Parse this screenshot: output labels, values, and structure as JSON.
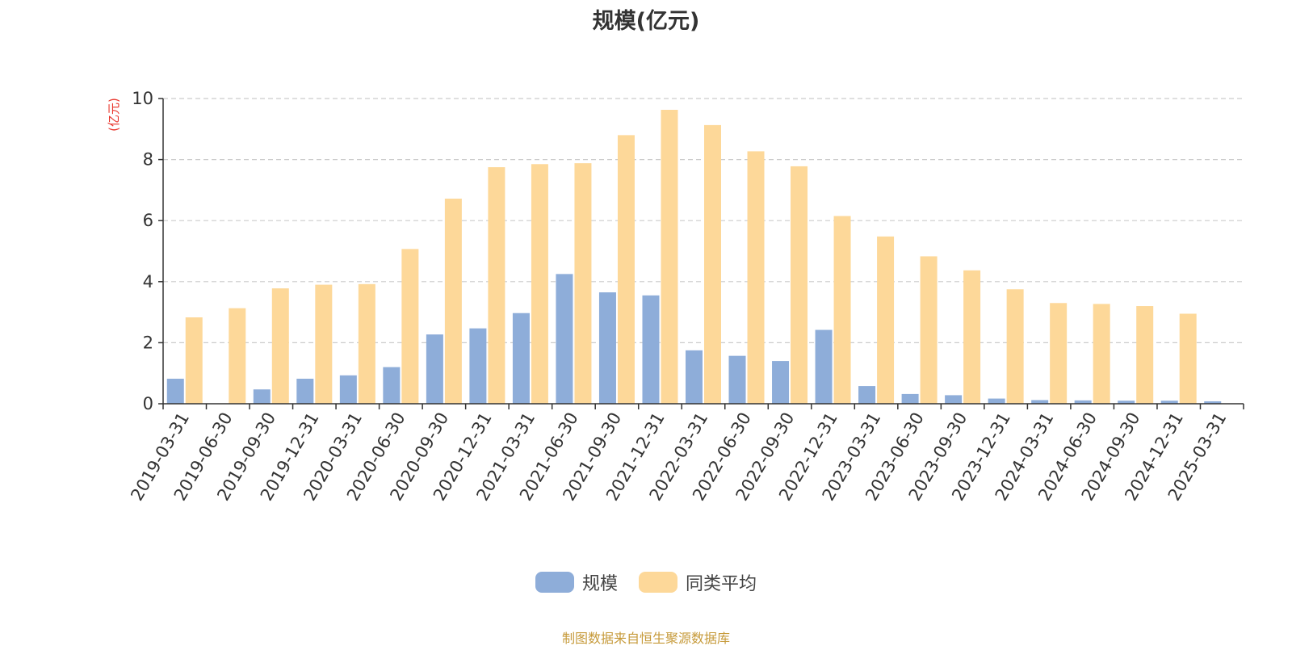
{
  "chart_data": {
    "type": "bar",
    "title": "规模(亿元)",
    "ylabel": "(亿元)",
    "xlabel": "",
    "ylim": [
      0,
      10
    ],
    "yticks": [
      "0",
      "2",
      "4",
      "6",
      "8",
      "10"
    ],
    "grid": true,
    "legend_position": "bottom",
    "categories": [
      "2019-03-31",
      "2019-06-30",
      "2019-09-30",
      "2019-12-31",
      "2020-03-31",
      "2020-06-30",
      "2020-09-30",
      "2020-12-31",
      "2021-03-31",
      "2021-06-30",
      "2021-09-30",
      "2021-12-31",
      "2022-03-31",
      "2022-06-30",
      "2022-09-30",
      "2022-12-31",
      "2023-03-31",
      "2023-06-30",
      "2023-09-30",
      "2023-12-31",
      "2024-03-31",
      "2024-06-30",
      "2024-09-30",
      "2024-12-31",
      "2025-03-31"
    ],
    "series": [
      {
        "name": "规模",
        "color": "#8eadd9",
        "values": [
          0.82,
          0.0,
          0.47,
          0.82,
          0.93,
          1.2,
          2.27,
          2.47,
          2.97,
          4.25,
          3.65,
          3.55,
          1.75,
          1.57,
          1.4,
          2.42,
          0.58,
          0.32,
          0.28,
          0.17,
          0.12,
          0.11,
          0.1,
          0.1,
          0.08
        ]
      },
      {
        "name": "同类平均",
        "color": "#fdd899",
        "values": [
          2.83,
          3.13,
          3.78,
          3.9,
          3.92,
          5.07,
          6.72,
          7.75,
          7.85,
          7.88,
          8.8,
          9.63,
          9.13,
          8.27,
          7.78,
          6.15,
          5.48,
          4.83,
          4.37,
          3.75,
          3.3,
          3.27,
          3.2,
          2.95,
          null
        ]
      }
    ],
    "source_note": "制图数据来自恒生聚源数据库"
  },
  "colors": {
    "axis": "#333333",
    "grid": "#cccccc",
    "ylabel": "#e8332a",
    "source": "#c69a3a"
  }
}
